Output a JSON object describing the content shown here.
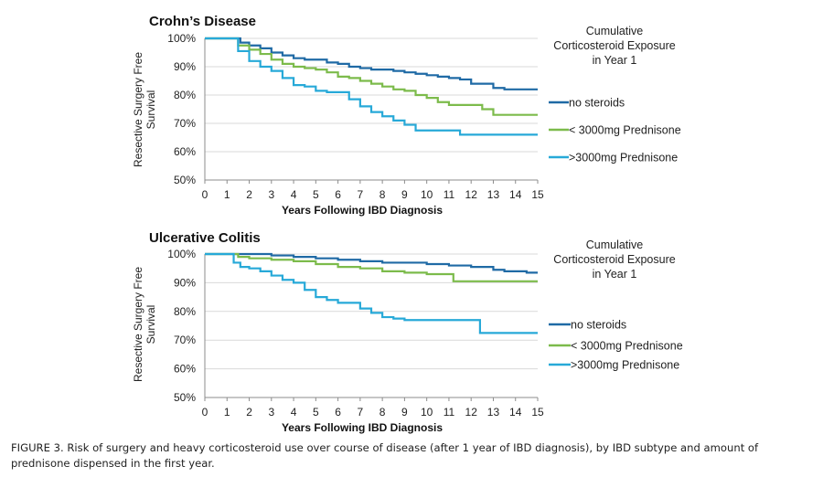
{
  "caption": "FIGURE 3. Risk of surgery and heavy corticosteroid use over course of disease (after 1 year of IBD diagnosis), by IBD subtype and amount of prednisone dispensed in the first year.",
  "chart_data": [
    {
      "type": "line",
      "step": true,
      "title": "Crohn’s Disease",
      "xlabel": "Years Following IBD Diagnosis",
      "ylabel_lines": [
        "Resective Surgery Free",
        "Survival"
      ],
      "xlim": [
        0,
        15
      ],
      "ylim": [
        50,
        100
      ],
      "xticks": [
        0,
        1,
        2,
        3,
        4,
        5,
        6,
        7,
        8,
        9,
        10,
        11,
        12,
        13,
        14,
        15
      ],
      "yticks": [
        50,
        60,
        70,
        80,
        90,
        100
      ],
      "ytick_labels": [
        "50%",
        "60%",
        "70%",
        "80%",
        "90%",
        "100%"
      ],
      "gridlines": "horizontal",
      "legend_title_lines": [
        "Cumulative",
        "Corticosteroid Exposure",
        "in Year 1"
      ],
      "series": [
        {
          "name": "no steroids",
          "color": "#1f6aa5",
          "x": [
            0,
            1.2,
            1.6,
            2,
            2.5,
            3,
            3.5,
            4,
            4.5,
            5,
            5.5,
            6,
            6.5,
            7,
            7.5,
            8,
            8.5,
            9,
            9.5,
            10,
            10.5,
            11,
            11.5,
            12,
            12.5,
            13,
            13.5,
            14,
            14.5,
            15
          ],
          "y": [
            100,
            100,
            98.5,
            97.5,
            96.5,
            95,
            94,
            93,
            92.5,
            92.5,
            91.5,
            91,
            90,
            89.5,
            89,
            89,
            88.5,
            88,
            87.5,
            87,
            86.5,
            86,
            85.5,
            84,
            84,
            82.5,
            82,
            82,
            82,
            82
          ]
        },
        {
          "name": "< 3000mg Prednisone",
          "color": "#7cbb4b",
          "x": [
            0,
            1.2,
            1.5,
            2,
            2.5,
            3,
            3.5,
            4,
            4.5,
            5,
            5.5,
            6,
            6.5,
            7,
            7.5,
            8,
            8.5,
            9,
            9.5,
            10,
            10.5,
            11,
            11.5,
            12,
            12.5,
            13,
            13.5,
            14,
            14.5,
            15
          ],
          "y": [
            100,
            100,
            97.5,
            96,
            94.5,
            92.5,
            91,
            90,
            89.5,
            89,
            88,
            86.5,
            86,
            85,
            84,
            83,
            82,
            81.5,
            80,
            79,
            77.5,
            76.5,
            76.5,
            76.5,
            75,
            73,
            73,
            73,
            73,
            73
          ]
        },
        {
          "name": ">3000mg Prednisone",
          "color": "#27a9d8",
          "x": [
            0,
            1.2,
            1.5,
            2,
            2.5,
            3,
            3.5,
            4,
            4.5,
            5,
            5.5,
            6,
            6.5,
            7,
            7.5,
            8,
            8.5,
            9,
            9.5,
            10,
            10.5,
            11,
            11.5,
            12,
            12.5,
            13,
            13.5,
            14,
            14.5,
            15
          ],
          "y": [
            100,
            100,
            95.5,
            92,
            90,
            88.5,
            86,
            83.5,
            83,
            81.5,
            81,
            81,
            78.5,
            76,
            74,
            72.5,
            71,
            69.5,
            67.5,
            67.5,
            67.5,
            67.5,
            66,
            66,
            66,
            66,
            66,
            66,
            66,
            66
          ]
        }
      ]
    },
    {
      "type": "line",
      "step": true,
      "title": "Ulcerative Colitis",
      "xlabel": "Years Following IBD Diagnosis",
      "ylabel_lines": [
        "Resective Surgery Free",
        "Survival"
      ],
      "xlim": [
        0,
        15
      ],
      "ylim": [
        50,
        100
      ],
      "xticks": [
        0,
        1,
        2,
        3,
        4,
        5,
        6,
        7,
        8,
        9,
        10,
        11,
        12,
        13,
        14,
        15
      ],
      "yticks": [
        50,
        60,
        70,
        80,
        90,
        100
      ],
      "ytick_labels": [
        "50%",
        "60%",
        "70%",
        "80%",
        "90%",
        "100%"
      ],
      "gridlines": "horizontal",
      "legend_title_lines": [
        "Cumulative",
        "Corticosteroid Exposure",
        "in Year 1"
      ],
      "series": [
        {
          "name": "no steroids",
          "color": "#1f6aa5",
          "x": [
            0,
            1,
            3,
            4,
            5,
            6,
            7,
            8,
            9,
            10,
            11,
            12,
            13,
            13.5,
            14,
            14.5,
            15
          ],
          "y": [
            100,
            100,
            99.5,
            99,
            98.5,
            98,
            97.5,
            97,
            97,
            96.5,
            96,
            95.5,
            94.5,
            94,
            94,
            93.5,
            93.5
          ]
        },
        {
          "name": "< 3000mg Prednisone",
          "color": "#7cbb4b",
          "x": [
            0,
            1,
            1.5,
            2,
            3,
            4,
            5,
            6,
            7,
            8,
            9,
            10,
            11,
            11.2,
            12,
            13,
            14,
            15
          ],
          "y": [
            100,
            100,
            99,
            98.5,
            98,
            97.5,
            96.5,
            95.5,
            95,
            94,
            93.5,
            93,
            93,
            90.5,
            90.5,
            90.5,
            90.5,
            90.5
          ]
        },
        {
          "name": ">3000mg Prednisone",
          "color": "#27a9d8",
          "x": [
            0,
            1,
            1.3,
            1.6,
            2,
            2.5,
            3,
            3.5,
            4,
            4.5,
            5,
            5.5,
            6,
            6.5,
            7,
            7.5,
            8,
            8.5,
            9,
            10,
            11,
            12,
            12.4,
            13,
            14,
            15
          ],
          "y": [
            100,
            100,
            97,
            95.5,
            95,
            94,
            92.5,
            91,
            90,
            87.5,
            85,
            84,
            83,
            83,
            81,
            79.5,
            78,
            77.5,
            77,
            77,
            77,
            77,
            72.5,
            72.5,
            72.5,
            72.5
          ]
        }
      ]
    }
  ]
}
